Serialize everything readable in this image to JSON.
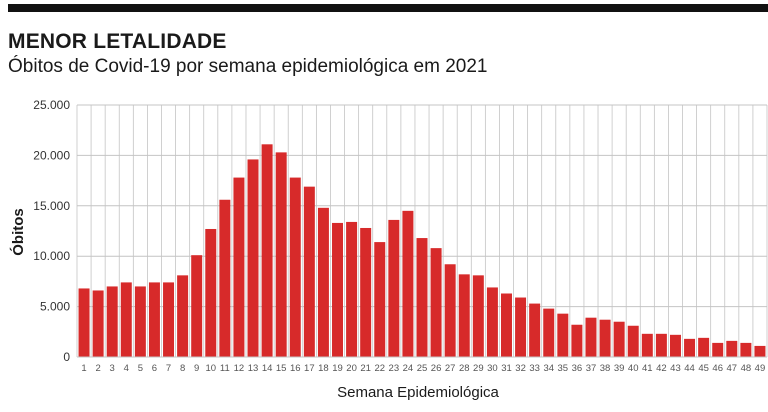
{
  "header": {
    "title": "MENOR LETALIDADE",
    "subtitle": "Óbitos de Covid-19 por semana epidemiológica em 2021"
  },
  "colors": {
    "bar": "#d72a2a",
    "grid": "#c4c4c4",
    "rule": "#111111"
  },
  "chart_data": {
    "type": "bar",
    "title": "MENOR LETALIDADE",
    "subtitle": "Óbitos de Covid-19 por semana epidemiológica em 2021",
    "xlabel": "Semana Epidemiológica",
    "ylabel": "Óbitos",
    "ylim": [
      0,
      25000
    ],
    "yticks": [
      0,
      5000,
      10000,
      15000,
      20000,
      25000
    ],
    "ytick_labels": [
      "0",
      "5.000",
      "10.000",
      "15.000",
      "20.000",
      "25.000"
    ],
    "grid": true,
    "categories": [
      "1",
      "2",
      "3",
      "4",
      "5",
      "6",
      "7",
      "8",
      "9",
      "10",
      "11",
      "12",
      "13",
      "14",
      "15",
      "16",
      "17",
      "18",
      "19",
      "20",
      "21",
      "22",
      "23",
      "24",
      "25",
      "26",
      "27",
      "28",
      "29",
      "30",
      "31",
      "32",
      "33",
      "34",
      "35",
      "36",
      "37",
      "38",
      "39",
      "40",
      "41",
      "42",
      "43",
      "44",
      "45",
      "46",
      "47",
      "48",
      "49"
    ],
    "series": [
      {
        "values": [
          6800,
          6600,
          7000,
          7400,
          7000,
          7400,
          7400,
          8100,
          10100,
          12700,
          15600,
          17800,
          19600,
          21100,
          20300,
          17800,
          16900,
          14800,
          13300,
          13400,
          12800,
          11400,
          13600,
          14500,
          11800,
          10800,
          9200,
          8200,
          8100,
          6900,
          6300,
          5900,
          5300,
          4800,
          4300,
          3200,
          3900,
          3700,
          3500,
          3100,
          2300,
          2300,
          2200,
          1800,
          1900,
          1400,
          1600,
          1400,
          1100
        ]
      }
    ]
  }
}
